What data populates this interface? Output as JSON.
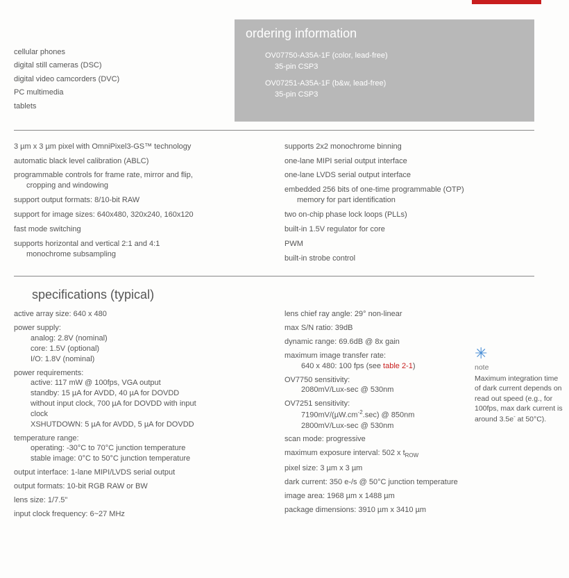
{
  "applications": [
    "cellular phones",
    "digital still cameras (DSC)",
    "digital video camcorders (DVC)",
    "PC multimedia",
    "tablets"
  ],
  "ordering": {
    "heading": "ordering information",
    "items": [
      {
        "title": "OV07750-A35A-1F (color, lead-free)",
        "sub": "35-pin CSP3"
      },
      {
        "title": "OV07251-A35A-1F (b&w, lead-free)",
        "sub": "35-pin CSP3"
      }
    ]
  },
  "features_left": [
    "3 µm x 3 µm pixel with OmniPixel3-GS™ technology",
    "automatic black level calibration (ABLC)",
    "programmable controls for frame rate, mirror and flip,|cropping and windowing",
    "support output formats: 8/10-bit RAW",
    "support for image sizes: 640x480, 320x240, 160x120",
    "fast mode switching",
    "supports horizontal and vertical 2:1 and 4:1|monochrome subsampling"
  ],
  "features_right": [
    "supports 2x2 monochrome binning",
    "one-lane MIPI serial output interface",
    "one-lane LVDS serial output interface",
    "embedded 256 bits of one-time programmable (OTP)|memory for part identification",
    "two on-chip phase lock loops (PLLs)",
    "built-in 1.5V regulator for core",
    "PWM",
    "built-in strobe control"
  ],
  "spec_heading": "specifications (typical)",
  "specs_left": {
    "active_array": "active array size: 640 x 480",
    "psupply_label": "power supply:",
    "psupply_analog": "analog: 2.8V (nominal)",
    "psupply_core": "core: 1.5V (optional)",
    "psupply_io": "I/O: 1.8V (nominal)",
    "preq_label": "power requirements:",
    "preq_active": "active: 117 mW @ 100fps, VGA output",
    "preq_standby1": "standby: 15 µA for AVDD, 40 µA for DOVDD",
    "preq_standby2": "without input clock, 700 µA for DOVDD with input",
    "preq_standby3": "clock",
    "preq_xshut": "XSHUTDOWN: 5 µA for AVDD, 5 µA for DOVDD",
    "temp_label": "temperature range:",
    "temp_op": "operating: -30°C to 70°C junction temperature",
    "temp_stable": "stable image: 0°C to 50°C junction temperature",
    "out_if": "output interface: 1-lane MIPI/LVDS serial output",
    "out_fmt": "output formats: 10-bit RGB RAW or BW",
    "lens_size": "lens size: 1/7.5\"",
    "clock": "input clock frequency: 6~27 MHz"
  },
  "specs_right": {
    "cra": "lens chief ray angle: 29° non-linear",
    "sn": "max S/N ratio: 39dB",
    "dr": "dynamic range: 69.6dB @ 8x gain",
    "max_rate_label": "maximum image transfer rate:",
    "max_rate_val_pre": "640 x 480: 100 fps (see ",
    "max_rate_link": "table 2-1",
    "max_rate_val_post": ")",
    "sens7750_label": "OV7750 sensitivity:",
    "sens7750_val": "2080mV/Lux-sec @ 530nm",
    "sens7251_label": "OV7251 sensitivity:",
    "sens7251_v1a": "7190mV/(µW.cm",
    "sens7251_v1b": ".sec) @ 850nm",
    "sens7251_v2": "2800mV/Lux-sec @ 530nm",
    "scan": "scan mode: progressive",
    "max_exp_pre": "maximum exposure interval: 502 x t",
    "max_exp_sub": "ROW",
    "pixel": "pixel size: 3 µm x 3 µm",
    "dark": "dark current: 350 e-/s @ 50°C junction temperature",
    "imgarea": "image area: 1968 µm x 1488 µm",
    "pkg": "package dimensions: 3910 µm x 3410 µm"
  },
  "note": {
    "title": "note",
    "body_pre": "Maximum integration time of dark current depends on read out speed (e.g., for 100fps, max dark current is around 3.5e",
    "body_post": " at 50°C)."
  },
  "colors": {
    "accent_red": "#c81e1e",
    "box_gray": "#b8b8b8",
    "text": "#555555",
    "note_icon": "#4a8fd6"
  }
}
